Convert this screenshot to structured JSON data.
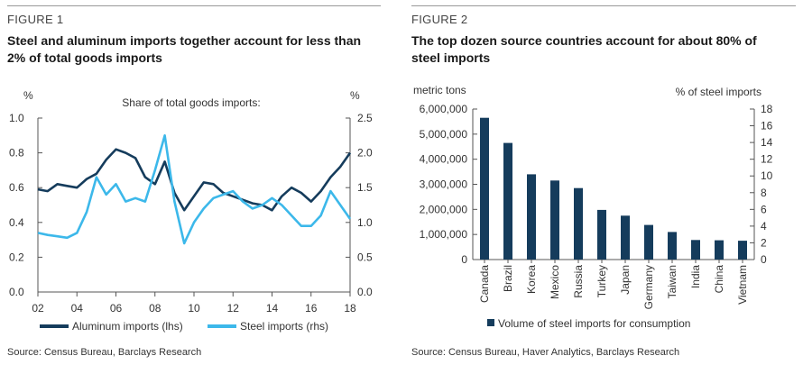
{
  "figures": [
    {
      "label": "FIGURE 1",
      "title": "Steel and aluminum imports together account for less than 2% of total goods imports",
      "source": "Source: Census Bureau, Barclays Research"
    },
    {
      "label": "FIGURE 2",
      "title": "The top dozen source countries account for about 80% of steel imports",
      "source": "Source: Census Bureau, Haver Analytics, Barclays Research"
    }
  ],
  "colors": {
    "dark_navy": "#153c5c",
    "light_blue": "#3cb8ea",
    "axis": "#555555"
  },
  "chart_data": [
    {
      "type": "line",
      "title": "Share of total goods imports:",
      "ylabel_left": "%",
      "ylabel_right": "%",
      "ylim_left": [
        0.0,
        1.0
      ],
      "ylim_right": [
        0.0,
        2.5
      ],
      "left_ticks": [
        "0.0",
        "0.2",
        "0.4",
        "0.6",
        "0.8",
        "1.0"
      ],
      "right_ticks": [
        "0.0",
        "0.5",
        "1.0",
        "1.5",
        "2.0",
        "2.5"
      ],
      "x_ticks": [
        "02",
        "04",
        "06",
        "08",
        "10",
        "12",
        "14",
        "16",
        "18"
      ],
      "xlim": [
        2002,
        2018
      ],
      "series": [
        {
          "name": "Aluminum imports (lhs)",
          "axis": "left",
          "color": "#153c5c",
          "x": [
            2002.0,
            2002.5,
            2003.0,
            2003.5,
            2004.0,
            2004.5,
            2005.0,
            2005.5,
            2006.0,
            2006.5,
            2007.0,
            2007.5,
            2008.0,
            2008.5,
            2009.0,
            2009.5,
            2010.0,
            2010.5,
            2011.0,
            2011.5,
            2012.0,
            2012.5,
            2013.0,
            2013.5,
            2014.0,
            2014.5,
            2015.0,
            2015.5,
            2016.0,
            2016.5,
            2017.0,
            2017.5,
            2018.0
          ],
          "values": [
            0.59,
            0.58,
            0.62,
            0.61,
            0.6,
            0.65,
            0.68,
            0.76,
            0.82,
            0.8,
            0.77,
            0.66,
            0.62,
            0.75,
            0.57,
            0.47,
            0.55,
            0.63,
            0.62,
            0.57,
            0.55,
            0.53,
            0.51,
            0.5,
            0.47,
            0.55,
            0.6,
            0.57,
            0.52,
            0.58,
            0.66,
            0.72,
            0.8
          ]
        },
        {
          "name": "Steel imports (rhs)",
          "axis": "right",
          "color": "#3cb8ea",
          "x": [
            2002.0,
            2002.5,
            2003.0,
            2003.5,
            2004.0,
            2004.5,
            2005.0,
            2005.5,
            2006.0,
            2006.5,
            2007.0,
            2007.5,
            2008.0,
            2008.5,
            2009.0,
            2009.5,
            2010.0,
            2010.5,
            2011.0,
            2011.5,
            2012.0,
            2012.5,
            2013.0,
            2013.5,
            2014.0,
            2014.5,
            2015.0,
            2015.5,
            2016.0,
            2016.5,
            2017.0,
            2017.5,
            2018.0
          ],
          "values": [
            0.85,
            0.82,
            0.8,
            0.78,
            0.85,
            1.15,
            1.65,
            1.4,
            1.55,
            1.3,
            1.35,
            1.3,
            1.75,
            2.25,
            1.3,
            0.7,
            1.0,
            1.2,
            1.35,
            1.4,
            1.45,
            1.3,
            1.2,
            1.25,
            1.35,
            1.25,
            1.1,
            0.95,
            0.95,
            1.1,
            1.45,
            1.25,
            1.05
          ]
        }
      ]
    },
    {
      "type": "bar",
      "ylabel_left": "metric tons",
      "ylabel_right": "% of steel imports",
      "ylim": [
        0,
        6000000
      ],
      "ylim_right": [
        0,
        18
      ],
      "left_ticks": [
        "0",
        "1,000,000",
        "2,000,000",
        "3,000,000",
        "4,000,000",
        "5,000,000",
        "6,000,000"
      ],
      "right_ticks": [
        "0",
        "2",
        "4",
        "6",
        "8",
        "10",
        "12",
        "14",
        "16",
        "18"
      ],
      "categories": [
        "Canada",
        "Brazil",
        "Korea",
        "Mexico",
        "Russia",
        "Turkey",
        "Japan",
        "Germany",
        "Taiwan",
        "India",
        "China",
        "Vietnam"
      ],
      "series": [
        {
          "name": "Volume of steel imports for consumption",
          "color": "#153c5c",
          "values": [
            5650000,
            4650000,
            3400000,
            3150000,
            2850000,
            1980000,
            1750000,
            1380000,
            1100000,
            780000,
            770000,
            750000
          ]
        }
      ]
    }
  ]
}
